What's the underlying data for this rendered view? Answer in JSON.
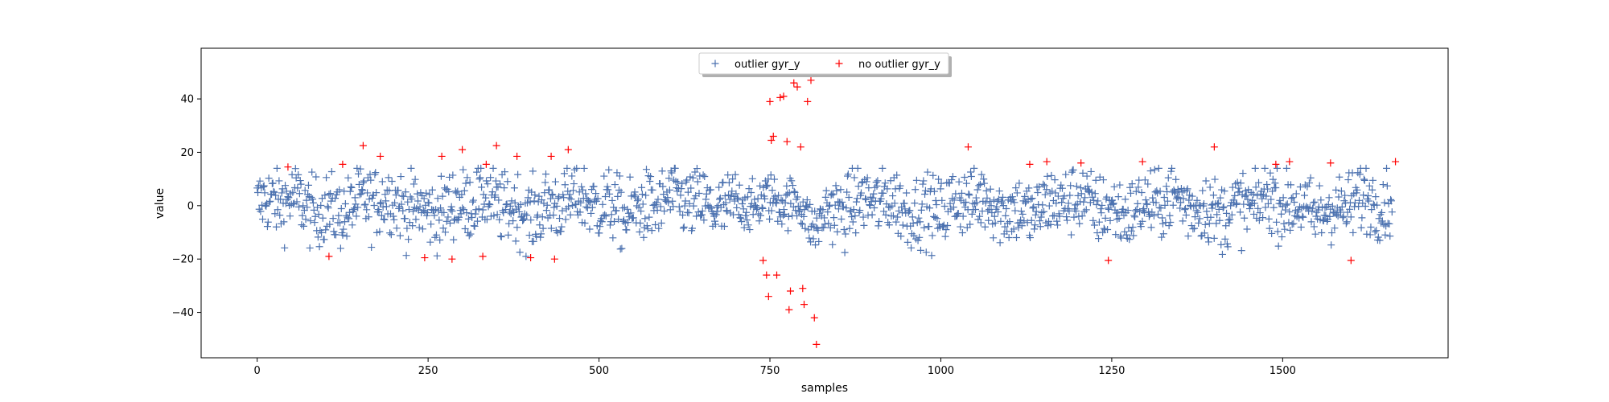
{
  "chart_data": {
    "type": "scatter",
    "title": "",
    "xlabel": "samples",
    "ylabel": "value",
    "xlim": [
      -82,
      1742
    ],
    "ylim": [
      -57,
      59
    ],
    "xticks": [
      0,
      250,
      500,
      750,
      1000,
      1250,
      1500
    ],
    "yticks": [
      -40,
      -20,
      0,
      20,
      40
    ],
    "grid": false,
    "legend": {
      "position": "upper center",
      "ncol": 2,
      "entries": [
        "outlier gyr_y",
        "no outlier gyr_y"
      ]
    },
    "marker": "+",
    "series": [
      {
        "name": "outlier gyr_y",
        "color": "#4c72b0",
        "generator": "dense normal-range samples",
        "x_range": [
          0,
          1660
        ],
        "count": 1660,
        "y_typical_range": [
          -19,
          14
        ]
      },
      {
        "name": "no outlier gyr_y",
        "color": "#ff0000",
        "x": [
          45,
          105,
          125,
          155,
          180,
          245,
          270,
          285,
          300,
          330,
          335,
          350,
          380,
          400,
          430,
          435,
          455,
          740,
          745,
          748,
          750,
          752,
          755,
          760,
          765,
          770,
          775,
          778,
          780,
          785,
          790,
          795,
          798,
          800,
          805,
          810,
          815,
          818,
          1040,
          1130,
          1155,
          1205,
          1245,
          1295,
          1400,
          1490,
          1510,
          1570,
          1600,
          1665
        ],
        "y": [
          14.5,
          -19,
          15.5,
          22.5,
          18.5,
          -19.5,
          18.5,
          -20,
          21,
          -19,
          15.5,
          22.5,
          18.5,
          -19.5,
          18.5,
          -20,
          21,
          -20.5,
          -26,
          -34,
          39,
          24.5,
          26,
          -26,
          40.5,
          41,
          24,
          -39,
          -32,
          46,
          44.5,
          22,
          -31,
          -37,
          39,
          47,
          -42,
          -52,
          22,
          15.5,
          16.5,
          16,
          -20.5,
          16.5,
          22,
          15.5,
          16.5,
          16,
          -20.5,
          16.5
        ]
      }
    ]
  }
}
